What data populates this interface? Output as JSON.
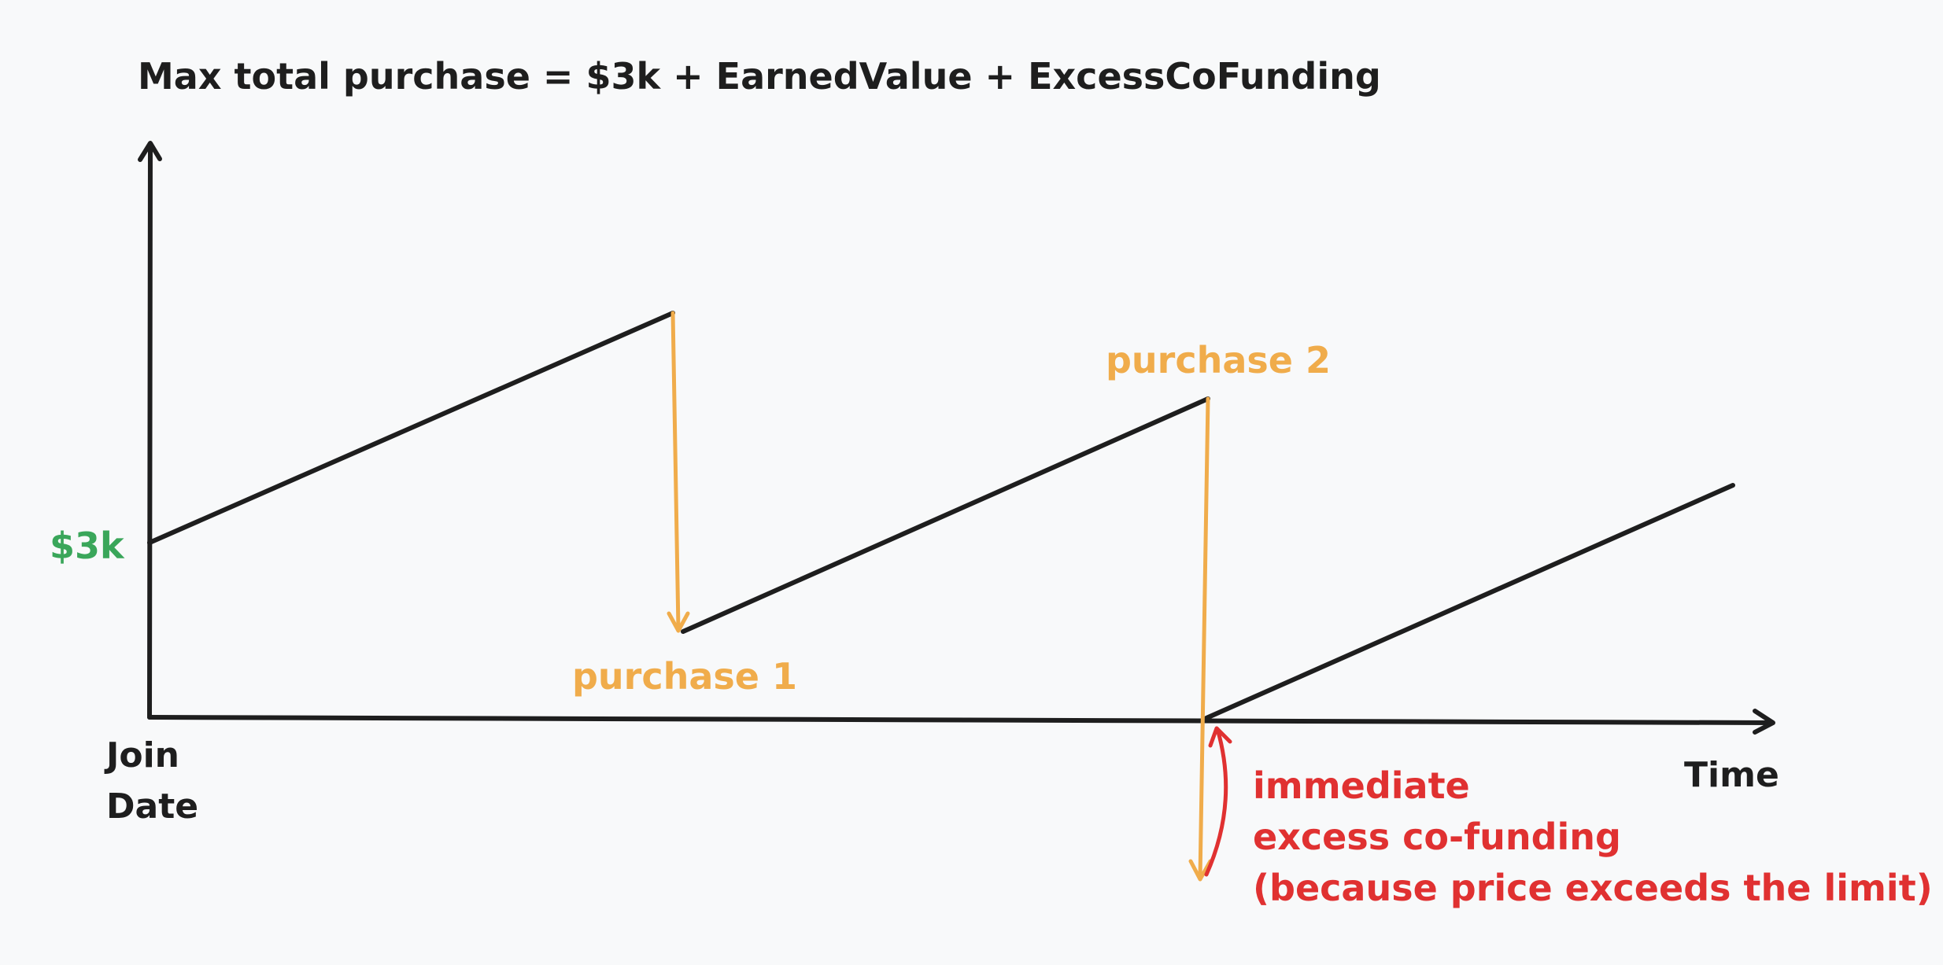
{
  "title": "Max total purchase = $3k + EarnedValue + ExcessCoFunding",
  "axes": {
    "y_start_label": "$3k",
    "x_origin_label": [
      "Join",
      "Date"
    ],
    "x_axis_label": "Time"
  },
  "events": {
    "purchase_1": "purchase 1",
    "purchase_2": "purchase 2"
  },
  "annotation": {
    "lines": [
      "immediate",
      "excess co-funding",
      "(because price exceeds the limit)"
    ]
  },
  "colors": {
    "axis": "#1e1e1e",
    "start_value": "#3aa65a",
    "purchase": "#f0ac4b",
    "cofunding": "#e03131",
    "background": "#f8f9fa"
  }
}
